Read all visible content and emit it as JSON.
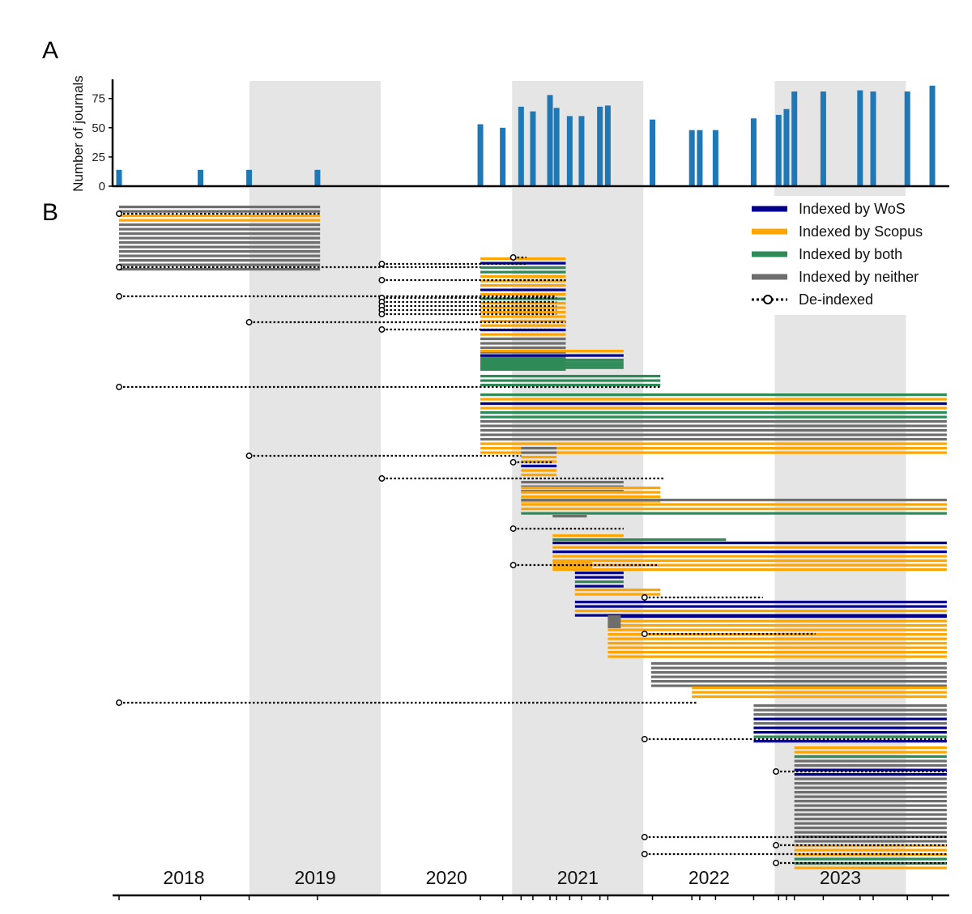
{
  "panel_a_label": "A",
  "panel_b_label": "B",
  "colors": {
    "bar": "#1f77b4",
    "wos": "#00008b",
    "scopus": "#ffa500",
    "both": "#2e8b57",
    "neither": "#6e6e6e",
    "shade": "#e5e5e5"
  },
  "chart_data": [
    {
      "type": "bar",
      "title": "",
      "xlabel": "",
      "ylabel": "Number of journals",
      "ylim": [
        0,
        90
      ],
      "yticks": [
        0,
        25,
        50,
        75
      ],
      "x_unit": "year (fractional)",
      "x_range": [
        2018.0,
        2024.3
      ],
      "x": [
        2018.0,
        2018.62,
        2018.99,
        2019.51,
        2020.75,
        2020.92,
        2021.06,
        2021.15,
        2021.28,
        2021.33,
        2021.43,
        2021.52,
        2021.66,
        2021.72,
        2022.06,
        2022.36,
        2022.42,
        2022.54,
        2022.83,
        2023.02,
        2023.08,
        2023.14,
        2023.36,
        2023.64,
        2023.74,
        2024.0,
        2024.19
      ],
      "values": [
        14,
        14,
        14,
        14,
        53,
        50,
        68,
        64,
        78,
        67,
        60,
        60,
        68,
        69,
        57,
        48,
        48,
        48,
        58,
        61,
        66,
        81,
        81,
        82,
        81,
        81,
        86
      ],
      "grid": false
    },
    {
      "type": "timeline",
      "description_of_marks": "Each horizontal line is a journal; colour gives indexing status; dotted line with circle marks de-indexing date",
      "year_labels": [
        "2018",
        "2019",
        "2020",
        "2021",
        "2022",
        "2023"
      ],
      "shaded_years": [
        "2019",
        "2021",
        "2023"
      ],
      "legend_placement": "top-right",
      "legend": [
        {
          "label": "Indexed by WoS",
          "key": "wos"
        },
        {
          "label": "Indexed by Scopus",
          "key": "scopus"
        },
        {
          "label": "Indexed by both",
          "key": "both"
        },
        {
          "label": "Indexed by neither",
          "key": "neither"
        },
        {
          "label": "De-indexed",
          "key": "deindexed"
        }
      ],
      "groups": [
        {
          "start": 2018.0,
          "end": 2019.53,
          "lines": [
            "neither",
            "neither",
            "scopus",
            "scopus",
            "neither",
            "neither",
            "neither",
            "neither",
            "neither",
            "neither",
            "neither",
            "neither",
            "neither",
            "neither",
            "neither"
          ]
        },
        {
          "start": 2020.75,
          "end": 2021.4,
          "lines": [
            "scopus",
            "wos",
            "both",
            "both",
            "scopus",
            "scopus",
            "scopus",
            "wos",
            "scopus",
            "both",
            "scopus",
            "scopus",
            "scopus",
            "scopus",
            "scopus",
            "scopus",
            "wos",
            "scopus",
            "neither",
            "neither",
            "neither",
            "neither",
            "neither",
            "scopus",
            "scopus"
          ]
        },
        {
          "start": 2020.75,
          "end": 2021.84,
          "lines": [
            "scopus",
            "wos",
            "both",
            "both",
            "both",
            "both"
          ]
        },
        {
          "start": 2020.75,
          "end": 2022.12,
          "lines": [
            "both",
            "both",
            "both"
          ]
        },
        {
          "start": 2020.75,
          "end": 2024.3,
          "lines": [
            "both",
            "scopus",
            "wos",
            "scopus",
            "both",
            "both",
            "neither",
            "neither",
            "neither",
            "neither",
            "neither",
            "scopus",
            "scopus",
            "scopus"
          ]
        },
        {
          "start": 2021.06,
          "end": 2021.33,
          "lines": [
            "neither",
            "neither",
            "scopus",
            "scopus",
            "wos",
            "scopus",
            "scopus"
          ]
        },
        {
          "start": 2021.06,
          "end": 2021.84,
          "lines": [
            "neither",
            "neither",
            "neither"
          ]
        },
        {
          "start": 2021.06,
          "end": 2022.12,
          "lines": [
            "scopus",
            "scopus",
            "scopus",
            "scopus"
          ]
        },
        {
          "start": 2021.06,
          "end": 2024.3,
          "lines": [
            "neither",
            "scopus",
            "scopus",
            "both"
          ]
        },
        {
          "start": 2021.3,
          "end": 2021.56,
          "lines": [
            "neither"
          ]
        },
        {
          "start": 2021.3,
          "end": 2021.84,
          "lines": [
            "scopus"
          ]
        },
        {
          "start": 2021.3,
          "end": 2022.62,
          "lines": [
            "both"
          ]
        },
        {
          "start": 2021.3,
          "end": 2024.3,
          "lines": [
            "wos",
            "scopus",
            "wos",
            "scopus",
            "scopus",
            "scopus",
            "scopus"
          ]
        },
        {
          "start": 2021.3,
          "end": 2021.6,
          "lines": [
            "scopus",
            "scopus"
          ]
        },
        {
          "start": 2021.47,
          "end": 2021.84,
          "lines": [
            "wos",
            "wos",
            "both",
            "wos"
          ]
        },
        {
          "start": 2021.47,
          "end": 2022.12,
          "lines": [
            "scopus",
            "scopus"
          ]
        },
        {
          "start": 2021.47,
          "end": 2024.3,
          "lines": [
            "wos",
            "wos",
            "scopus",
            "wos"
          ]
        },
        {
          "start": 2021.72,
          "end": 2024.3,
          "lines": [
            "wos",
            "scopus",
            "scopus",
            "scopus",
            "scopus",
            "scopus",
            "scopus",
            "scopus",
            "scopus",
            "scopus"
          ]
        },
        {
          "start": 2022.05,
          "end": 2024.3,
          "lines": [
            "neither",
            "neither",
            "neither",
            "neither",
            "neither",
            "neither"
          ]
        },
        {
          "start": 2022.36,
          "end": 2024.3,
          "lines": [
            "scopus",
            "scopus",
            "scopus"
          ]
        },
        {
          "start": 2022.83,
          "end": 2024.3,
          "lines": [
            "neither",
            "neither",
            "neither",
            "wos",
            "neither",
            "wos",
            "wos",
            "both",
            "wos"
          ]
        },
        {
          "start": 2023.14,
          "end": 2024.3,
          "lines": [
            "scopus",
            "scopus",
            "both",
            "neither",
            "neither",
            "wos",
            "wos",
            "neither",
            "neither",
            "neither",
            "neither",
            "neither",
            "neither",
            "neither",
            "neither",
            "neither",
            "neither",
            "neither",
            "neither",
            "neither",
            "neither",
            "neither",
            "scopus",
            "scopus",
            "scopus",
            "both",
            "both",
            "scopus"
          ]
        }
      ],
      "deindex_markers": [
        {
          "from": 2018.0,
          "to": 2019.53
        },
        {
          "from": 2018.0,
          "to": 2020.75
        },
        {
          "from": 2018.0,
          "to": 2021.33
        },
        {
          "from": 2018.0,
          "to": 2022.12
        },
        {
          "from": 2018.0,
          "to": 2022.4
        },
        {
          "from": 2018.99,
          "to": 2021.4
        },
        {
          "from": 2018.99,
          "to": 2021.06
        },
        {
          "from": 2020.0,
          "to": 2021.1
        },
        {
          "from": 2020.0,
          "to": 2021.4
        },
        {
          "from": 2020.0,
          "to": 2021.3
        },
        {
          "from": 2020.0,
          "to": 2022.15
        },
        {
          "from": 2021.0,
          "to": 2021.1
        },
        {
          "from": 2021.0,
          "to": 2021.3
        },
        {
          "from": 2021.0,
          "to": 2021.84
        },
        {
          "from": 2021.0,
          "to": 2022.1
        },
        {
          "from": 2022.0,
          "to": 2022.9
        },
        {
          "from": 2022.0,
          "to": 2023.3
        },
        {
          "from": 2022.0,
          "to": 2024.3
        },
        {
          "from": 2023.0,
          "to": 2024.3
        }
      ]
    }
  ]
}
